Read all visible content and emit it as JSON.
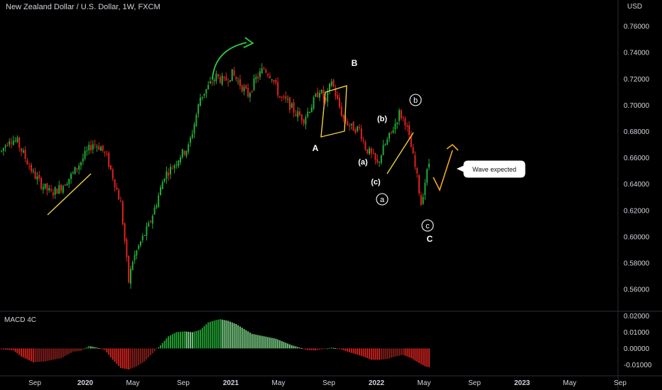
{
  "header": {
    "title": "New Zealand Dollar / U.S. Dollar, 1W, FXCM",
    "currency": "USD"
  },
  "indicator": {
    "name": "MACD 4C"
  },
  "colors": {
    "up": "#22ab35",
    "down": "#e0231f",
    "trendline": "#f0d040",
    "projection": "#f5a623",
    "swing_arrow": "#2ecc40",
    "macd_pos_strong": "#22ab35",
    "macd_pos_weak": "#7fd98a",
    "macd_neg_strong": "#d9231f",
    "macd_neg_weak": "#8a1f1c"
  },
  "chart_data": {
    "type": "candlestick",
    "time_labels": [
      "Sep",
      "2020",
      "May",
      "Sep",
      "2021",
      "May",
      "Sep",
      "2022",
      "May",
      "Sep",
      "2023",
      "May",
      "Sep"
    ],
    "price_axis": {
      "labels": [
        "0.76000",
        "0.74000",
        "0.72000",
        "0.70000",
        "0.68000",
        "0.66000",
        "0.64000",
        "0.62000",
        "0.60000",
        "0.58000",
        "0.56000"
      ],
      "range": [
        0.545,
        0.78
      ]
    },
    "macd_axis": {
      "labels": [
        "0.02000",
        "0.01000",
        "0.00000",
        "-0.01000"
      ],
      "range": [
        -0.016,
        0.022
      ]
    },
    "price_path": [
      [
        0,
        0.665
      ],
      [
        4,
        0.675
      ],
      [
        8,
        0.672
      ],
      [
        12,
        0.66
      ],
      [
        16,
        0.648
      ],
      [
        20,
        0.64
      ],
      [
        25,
        0.633
      ],
      [
        30,
        0.638
      ],
      [
        36,
        0.648
      ],
      [
        42,
        0.662
      ],
      [
        46,
        0.671
      ],
      [
        50,
        0.668
      ],
      [
        53,
        0.66
      ],
      [
        56,
        0.646
      ],
      [
        60,
        0.625
      ],
      [
        62,
        0.597
      ],
      [
        64,
        0.566
      ],
      [
        66,
        0.582
      ],
      [
        70,
        0.596
      ],
      [
        74,
        0.608
      ],
      [
        78,
        0.626
      ],
      [
        82,
        0.647
      ],
      [
        86,
        0.653
      ],
      [
        90,
        0.662
      ],
      [
        94,
        0.668
      ],
      [
        97,
        0.686
      ],
      [
        100,
        0.706
      ],
      [
        104,
        0.714
      ],
      [
        108,
        0.722
      ],
      [
        112,
        0.718
      ],
      [
        116,
        0.724
      ],
      [
        120,
        0.716
      ],
      [
        124,
        0.708
      ],
      [
        128,
        0.72
      ],
      [
        132,
        0.728
      ],
      [
        136,
        0.722
      ],
      [
        140,
        0.706
      ],
      [
        144,
        0.702
      ],
      [
        148,
        0.694
      ],
      [
        152,
        0.69
      ],
      [
        156,
        0.7
      ],
      [
        160,
        0.712
      ],
      [
        163,
        0.702
      ],
      [
        166,
        0.719
      ],
      [
        169,
        0.703
      ],
      [
        172,
        0.69
      ],
      [
        176,
        0.683
      ],
      [
        180,
        0.682
      ],
      [
        183,
        0.668
      ],
      [
        186,
        0.662
      ],
      [
        189,
        0.655
      ],
      [
        192,
        0.667
      ],
      [
        195,
        0.676
      ],
      [
        198,
        0.686
      ],
      [
        200,
        0.694
      ],
      [
        203,
        0.688
      ],
      [
        206,
        0.668
      ],
      [
        209,
        0.645
      ],
      [
        211,
        0.625
      ],
      [
        213,
        0.642
      ],
      [
        215,
        0.656
      ]
    ],
    "macd_path": [
      [
        0,
        -0.0005
      ],
      [
        6,
        -0.0012
      ],
      [
        10,
        -0.005
      ],
      [
        16,
        -0.0085
      ],
      [
        22,
        -0.008
      ],
      [
        30,
        -0.006
      ],
      [
        36,
        -0.002
      ],
      [
        40,
        -0.0015
      ],
      [
        44,
        0.0015
      ],
      [
        48,
        0.0005
      ],
      [
        52,
        -0.001
      ],
      [
        56,
        -0.007
      ],
      [
        60,
        -0.012
      ],
      [
        64,
        -0.013
      ],
      [
        68,
        -0.011
      ],
      [
        72,
        -0.008
      ],
      [
        76,
        -0.003
      ],
      [
        80,
        0.002
      ],
      [
        84,
        0.0075
      ],
      [
        88,
        0.01
      ],
      [
        92,
        0.0105
      ],
      [
        96,
        0.01
      ],
      [
        100,
        0.0115
      ],
      [
        104,
        0.016
      ],
      [
        108,
        0.0175
      ],
      [
        110,
        0.018
      ],
      [
        114,
        0.017
      ],
      [
        118,
        0.015
      ],
      [
        122,
        0.012
      ],
      [
        126,
        0.009
      ],
      [
        130,
        0.008
      ],
      [
        134,
        0.007
      ],
      [
        138,
        0.006
      ],
      [
        142,
        0.004
      ],
      [
        146,
        0.002
      ],
      [
        150,
        0.0005
      ],
      [
        154,
        -0.001
      ],
      [
        158,
        -0.0012
      ],
      [
        162,
        -0.0005
      ],
      [
        166,
        0.0005
      ],
      [
        170,
        -0.0002
      ],
      [
        174,
        -0.002
      ],
      [
        178,
        -0.0035
      ],
      [
        182,
        -0.005
      ],
      [
        186,
        -0.007
      ],
      [
        190,
        -0.007
      ],
      [
        194,
        -0.0065
      ],
      [
        198,
        -0.005
      ],
      [
        202,
        -0.004
      ],
      [
        206,
        -0.006
      ],
      [
        210,
        -0.009
      ],
      [
        213,
        -0.011
      ],
      [
        215,
        -0.0115
      ]
    ]
  },
  "annotations": {
    "labels": [
      "B",
      "A",
      "(b)",
      "(a)",
      "(c)",
      "b",
      "a",
      "c",
      "C"
    ],
    "callout": "Wave expected"
  }
}
